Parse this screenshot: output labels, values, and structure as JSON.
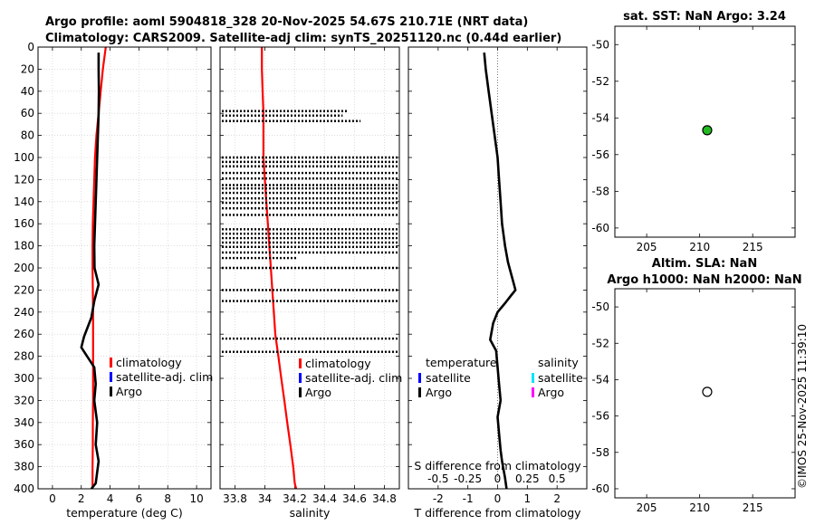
{
  "title_line1": "Argo profile: aoml 5904818_328 20-Nov-2025 54.67S 210.71E (NRT data)",
  "title_line2": "Climatology: CARS2009. Satellite-adj clim: synTS_20251120.nc (0.44d earlier)",
  "watermark": "©IMOS 25-Nov-2025 11:39:10",
  "colors": {
    "climatology": "#ff0000",
    "satellite": "#0000ff",
    "argo": "#000000",
    "argo_fill": "#22bb22",
    "sal_sat": "#00e5ff",
    "sal_argo": "#ff00ff"
  },
  "chart_data": [
    {
      "id": "temperature",
      "type": "line",
      "xlabel": "temperature (deg C)",
      "xlim": [
        -1,
        11
      ],
      "xticks": [
        0,
        2,
        4,
        6,
        8,
        10
      ],
      "xtick_labels": [
        "0",
        "2",
        "4",
        "6",
        "8",
        "10"
      ],
      "ylim": [
        0,
        400
      ],
      "yticks": [
        0,
        20,
        40,
        60,
        80,
        100,
        120,
        140,
        160,
        180,
        200,
        220,
        240,
        260,
        280,
        300,
        320,
        340,
        360,
        380,
        400
      ],
      "ytick_labels": [
        "0",
        "20",
        "40",
        "60",
        "80",
        "100",
        "120",
        "140",
        "160",
        "180",
        "200",
        "220",
        "240",
        "260",
        "280",
        "300",
        "320",
        "340",
        "360",
        "380",
        "400"
      ],
      "grid": true,
      "legend_placement": "center-right",
      "legend": [
        "climatology",
        "satellite-adj. clim",
        "Argo"
      ],
      "series": [
        {
          "name": "climatology",
          "color": "#ff0000",
          "x": [
            3.7,
            3.5,
            3.35,
            3.2,
            3.05,
            2.95,
            2.9,
            2.85,
            2.8,
            2.78,
            2.78,
            2.8,
            2.82,
            2.82,
            2.82,
            2.82,
            2.82,
            2.8,
            2.8,
            2.78,
            2.78
          ],
          "y": [
            0,
            20,
            40,
            60,
            80,
            100,
            120,
            140,
            160,
            180,
            200,
            220,
            240,
            260,
            280,
            300,
            320,
            340,
            360,
            380,
            400
          ]
        },
        {
          "name": "Argo",
          "color": "#000000",
          "x": [
            3.2,
            3.2,
            3.22,
            3.2,
            3.15,
            3.1,
            3.05,
            3.0,
            2.95,
            2.9,
            2.92,
            3.2,
            2.9,
            2.7,
            2.2,
            2.0,
            2.9,
            3.0,
            2.9,
            3.1,
            3.0,
            3.2,
            3.1,
            3.0,
            2.7
          ],
          "y": [
            5,
            20,
            40,
            60,
            80,
            100,
            120,
            140,
            160,
            180,
            200,
            215,
            230,
            245,
            262,
            272,
            290,
            305,
            320,
            340,
            360,
            375,
            385,
            395,
            400
          ]
        }
      ]
    },
    {
      "id": "salinity",
      "type": "line",
      "xlabel": "salinity",
      "xlim": [
        33.7,
        34.9
      ],
      "xticks": [
        33.8,
        34.0,
        34.2,
        34.4,
        34.6,
        34.8
      ],
      "xtick_labels": [
        "33.8",
        "34",
        "34.2",
        "34.4",
        "34.6",
        "34.8"
      ],
      "ylim": [
        0,
        400
      ],
      "grid": true,
      "legend_placement": "center-right",
      "legend": [
        "climatology",
        "satellite-adj. clim",
        "Argo"
      ],
      "series": [
        {
          "name": "climatology",
          "color": "#ff0000",
          "x": [
            33.98,
            33.98,
            33.985,
            33.99,
            33.99,
            33.99,
            34.0,
            34.01,
            34.02,
            34.03,
            34.04,
            34.05,
            34.06,
            34.07,
            34.09,
            34.11,
            34.13,
            34.15,
            34.17,
            34.19,
            34.2,
            34.21
          ],
          "y": [
            0,
            20,
            40,
            60,
            80,
            100,
            120,
            140,
            160,
            180,
            200,
            220,
            240,
            260,
            280,
            300,
            320,
            340,
            360,
            380,
            395,
            400
          ]
        },
        {
          "name": "Argo",
          "color": "#000000",
          "style": "dotted-horizontal",
          "rows": [
            [
              58,
              34.55
            ],
            [
              62,
              34.52
            ],
            [
              67,
              34.64
            ],
            [
              100,
              34.9
            ],
            [
              104,
              34.9
            ],
            [
              108,
              34.9
            ],
            [
              114,
              34.9
            ],
            [
              119,
              34.9
            ],
            [
              125,
              34.9
            ],
            [
              128,
              34.9
            ],
            [
              132,
              34.9
            ],
            [
              137,
              34.9
            ],
            [
              141,
              34.9
            ],
            [
              146,
              34.9
            ],
            [
              152,
              34.9
            ],
            [
              165,
              34.9
            ],
            [
              169,
              34.9
            ],
            [
              173,
              34.9
            ],
            [
              177,
              34.9
            ],
            [
              181,
              34.9
            ],
            [
              186,
              34.9
            ],
            [
              191,
              34.22
            ],
            [
              200,
              34.9
            ],
            [
              220,
              34.9
            ],
            [
              230,
              34.9
            ],
            [
              264,
              34.9
            ],
            [
              276,
              34.9
            ]
          ],
          "partial": [
            [
              132,
              34.47
            ],
            [
              137,
              34.47
            ]
          ]
        }
      ]
    },
    {
      "id": "difference",
      "type": "line",
      "xlabel": "T difference from climatology",
      "xlim": [
        -3,
        3
      ],
      "xticks": [
        -2,
        -1,
        0,
        1,
        2
      ],
      "xtick_labels": [
        "-2",
        "-1",
        "0",
        "1",
        "2"
      ],
      "top_xlabel": "S difference from climatology",
      "top_xticks": [
        -0.5,
        -0.25,
        0,
        0.25,
        0.5
      ],
      "top_xtick_labels": [
        "-0.5",
        "-0.25",
        "0",
        "0.25",
        "0.5"
      ],
      "ylim": [
        0,
        400
      ],
      "grid": false,
      "legend_left_title": "temperature",
      "legend_right_title": "salinity",
      "legend_left": [
        "satellite",
        "Argo"
      ],
      "legend_right": [
        "satellite",
        "Argo"
      ],
      "series": [
        {
          "name": "Argo",
          "color": "#000000",
          "x": [
            -0.45,
            -0.4,
            -0.3,
            -0.2,
            -0.1,
            0.0,
            0.05,
            0.1,
            0.15,
            0.25,
            0.35,
            0.45,
            0.55,
            0.6,
            0.45,
            0.25,
            0.0,
            -0.15,
            -0.25,
            -0.05,
            0.0,
            0.05,
            0.1,
            0.0,
            0.05,
            0.1,
            0.15,
            0.25,
            0.3
          ],
          "y": [
            5,
            20,
            40,
            60,
            80,
            100,
            120,
            140,
            160,
            180,
            195,
            205,
            215,
            220,
            225,
            232,
            240,
            250,
            265,
            275,
            290,
            305,
            320,
            335,
            350,
            365,
            375,
            390,
            400
          ]
        }
      ]
    },
    {
      "id": "sst_map",
      "type": "scatter",
      "title": "sat. SST: NaN Argo: 3.24",
      "xlim": [
        202,
        219
      ],
      "xticks": [
        205,
        210,
        215
      ],
      "xtick_labels": [
        "205",
        "210",
        "215"
      ],
      "ylim": [
        -60.5,
        -49
      ],
      "yticks": [
        -50,
        -52,
        -54,
        -56,
        -58,
        -60
      ],
      "ytick_labels": [
        "-50",
        "-52",
        "-54",
        "-56",
        "-58",
        "-60"
      ],
      "points": [
        {
          "x": 210.71,
          "y": -54.67
        }
      ]
    },
    {
      "id": "sla_map",
      "type": "scatter",
      "title_line1": "Altim. SLA: NaN",
      "title_line2": "Argo h1000: NaN h2000: NaN",
      "xlim": [
        202,
        219
      ],
      "xticks": [
        205,
        210,
        215
      ],
      "xtick_labels": [
        "205",
        "210",
        "215"
      ],
      "ylim": [
        -60.5,
        -49
      ],
      "yticks": [
        -50,
        -52,
        -54,
        -56,
        -58,
        -60
      ],
      "ytick_labels": [
        "-50",
        "-52",
        "-54",
        "-56",
        "-58",
        "-60"
      ],
      "points": [
        {
          "x": 210.71,
          "y": -54.67
        }
      ]
    }
  ]
}
